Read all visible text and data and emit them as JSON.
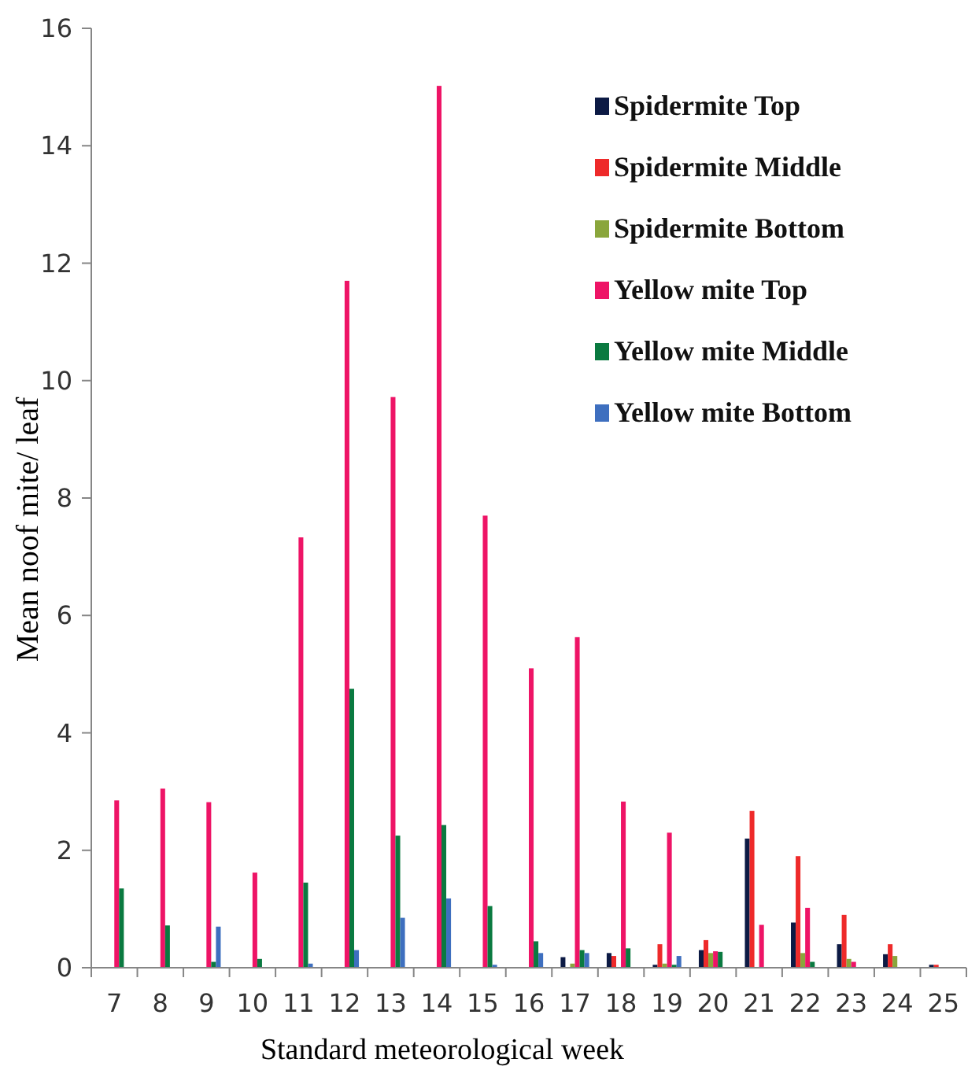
{
  "chart_data": {
    "type": "bar",
    "xlabel": "Standard meteorological week",
    "ylabel": "Mean noof mite/ leaf",
    "categories": [
      "7",
      "8",
      "9",
      "10",
      "11",
      "12",
      "13",
      "14",
      "15",
      "16",
      "17",
      "18",
      "19",
      "20",
      "21",
      "22",
      "23",
      "24",
      "25"
    ],
    "ylim": [
      0,
      16
    ],
    "yticks": [
      0,
      2,
      4,
      6,
      8,
      10,
      12,
      14,
      16
    ],
    "grid": false,
    "legend": "top right",
    "series": [
      {
        "name": "Spidermite Top",
        "color": "#0c1a44",
        "values": [
          0,
          0,
          0,
          0,
          0,
          0,
          0,
          0,
          0,
          0,
          0.18,
          0.25,
          0.05,
          0.3,
          2.2,
          0.77,
          0.4,
          0.23,
          0.05
        ]
      },
      {
        "name": "Spidermite Middle",
        "color": "#ee2a2a",
        "values": [
          0,
          0,
          0,
          0,
          0,
          0,
          0,
          0,
          0,
          0,
          0,
          0.2,
          0.4,
          0.47,
          2.67,
          1.9,
          0.9,
          0.4,
          0.05
        ]
      },
      {
        "name": "Spidermite Bottom",
        "color": "#8aa63c",
        "values": [
          0,
          0,
          0,
          0,
          0,
          0,
          0,
          0,
          0,
          0,
          0.07,
          0,
          0.07,
          0.25,
          0,
          0.25,
          0.15,
          0.2,
          0
        ]
      },
      {
        "name": "Yellow mite Top",
        "color": "#ee1466",
        "values": [
          2.85,
          3.05,
          2.82,
          1.62,
          7.33,
          11.7,
          9.72,
          15.02,
          7.7,
          5.1,
          5.63,
          2.83,
          2.3,
          0.28,
          0.73,
          1.02,
          0.1,
          0,
          0
        ]
      },
      {
        "name": "Yellow mite Middle",
        "color": "#0a7a40",
        "values": [
          1.35,
          0.72,
          0.1,
          0.15,
          1.45,
          4.75,
          2.25,
          2.43,
          1.05,
          0.45,
          0.3,
          0.33,
          0.05,
          0.27,
          0,
          0.1,
          0,
          0,
          0
        ]
      },
      {
        "name": "Yellow mite Bottom",
        "color": "#3e6fbf",
        "values": [
          0,
          0,
          0.7,
          0,
          0.07,
          0.3,
          0.85,
          1.18,
          0.05,
          0.25,
          0.25,
          0,
          0.2,
          0,
          0,
          0,
          0,
          0,
          0
        ]
      }
    ]
  }
}
